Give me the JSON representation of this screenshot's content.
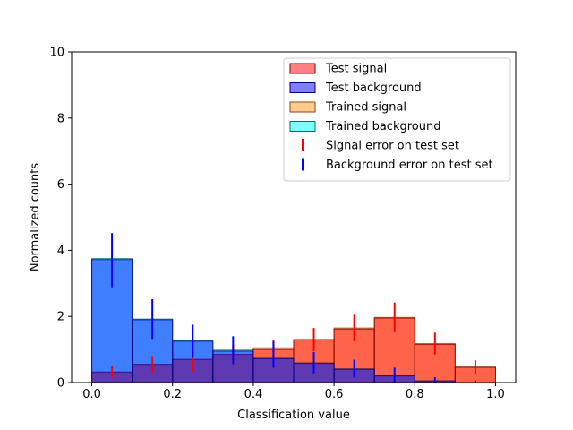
{
  "chart_data": {
    "type": "bar",
    "xlabel": "Classification value",
    "ylabel": "Normalized counts",
    "xlim": [
      -0.05,
      1.05
    ],
    "ylim": [
      0,
      10
    ],
    "xticks": [
      "0.0",
      "0.2",
      "0.4",
      "0.6",
      "0.8",
      "1.0"
    ],
    "yticks": [
      "0",
      "2",
      "4",
      "6",
      "8",
      "10"
    ],
    "bin_edges": [
      0.0,
      0.1,
      0.2,
      0.3,
      0.4,
      0.5,
      0.6,
      0.7,
      0.8,
      0.9,
      1.0
    ],
    "legend_position": "upper-right",
    "series": [
      {
        "name": "Trained signal",
        "kind": "bar",
        "color": "#ff9a3c",
        "edge": "#8a4a0a",
        "alpha": 0.55,
        "values": [
          0.3,
          0.55,
          0.7,
          0.85,
          1.05,
          1.3,
          1.65,
          1.97,
          1.18,
          0.47
        ]
      },
      {
        "name": "Trained background",
        "kind": "bar",
        "color": "#00ffff",
        "edge": "#0a6a6a",
        "alpha": 0.5,
        "values": [
          3.75,
          1.92,
          1.27,
          0.98,
          0.75,
          0.6,
          0.42,
          0.2,
          0.05,
          0.0
        ]
      },
      {
        "name": "Test signal",
        "kind": "bar",
        "color": "#ff0000",
        "edge": "#7a0000",
        "alpha": 0.5,
        "values": [
          0.32,
          0.55,
          0.7,
          0.85,
          1.0,
          1.3,
          1.62,
          1.95,
          1.15,
          0.46
        ]
      },
      {
        "name": "Test background",
        "kind": "bar",
        "color": "#0000ff",
        "edge": "#00007a",
        "alpha": 0.5,
        "values": [
          3.72,
          1.9,
          1.25,
          0.95,
          0.72,
          0.58,
          0.4,
          0.2,
          0.05,
          0.0
        ]
      },
      {
        "name": "Signal error on test set",
        "kind": "errorbar",
        "color": "#ff0000",
        "x": [
          0.05,
          0.15,
          0.25,
          0.35,
          0.45,
          0.55,
          0.65,
          0.75,
          0.85,
          0.95
        ],
        "y": [
          0.32,
          0.55,
          0.6,
          0.85,
          1.0,
          1.3,
          1.65,
          1.97,
          1.18,
          0.45
        ],
        "err": [
          0.18,
          0.25,
          0.28,
          0.28,
          0.3,
          0.35,
          0.4,
          0.45,
          0.33,
          0.22
        ]
      },
      {
        "name": "Background error on test set",
        "kind": "errorbar",
        "color": "#0000ff",
        "x": [
          0.05,
          0.15,
          0.25,
          0.35,
          0.45,
          0.55,
          0.65,
          0.75,
          0.85,
          0.95
        ],
        "y": [
          3.7,
          1.92,
          1.25,
          0.98,
          0.85,
          0.6,
          0.42,
          0.22,
          0.06,
          0.02
        ],
        "err": [
          0.82,
          0.6,
          0.5,
          0.42,
          0.4,
          0.32,
          0.27,
          0.23,
          0.1,
          0.04
        ]
      }
    ],
    "legend": [
      {
        "label": "Test signal",
        "marker": "patch",
        "color": "#ff8080",
        "edge": "#7a0000"
      },
      {
        "label": "Test background",
        "marker": "patch",
        "color": "#8080ff",
        "edge": "#00007a"
      },
      {
        "label": "Trained signal",
        "marker": "patch",
        "color": "#ffcc90",
        "edge": "#8a4a0a"
      },
      {
        "label": "Trained background",
        "marker": "patch",
        "color": "#80ffff",
        "edge": "#0a6a6a"
      },
      {
        "label": "Signal error on test set",
        "marker": "errbar",
        "color": "#ff0000"
      },
      {
        "label": "Background error on test set",
        "marker": "errbar",
        "color": "#0000ff"
      }
    ]
  }
}
